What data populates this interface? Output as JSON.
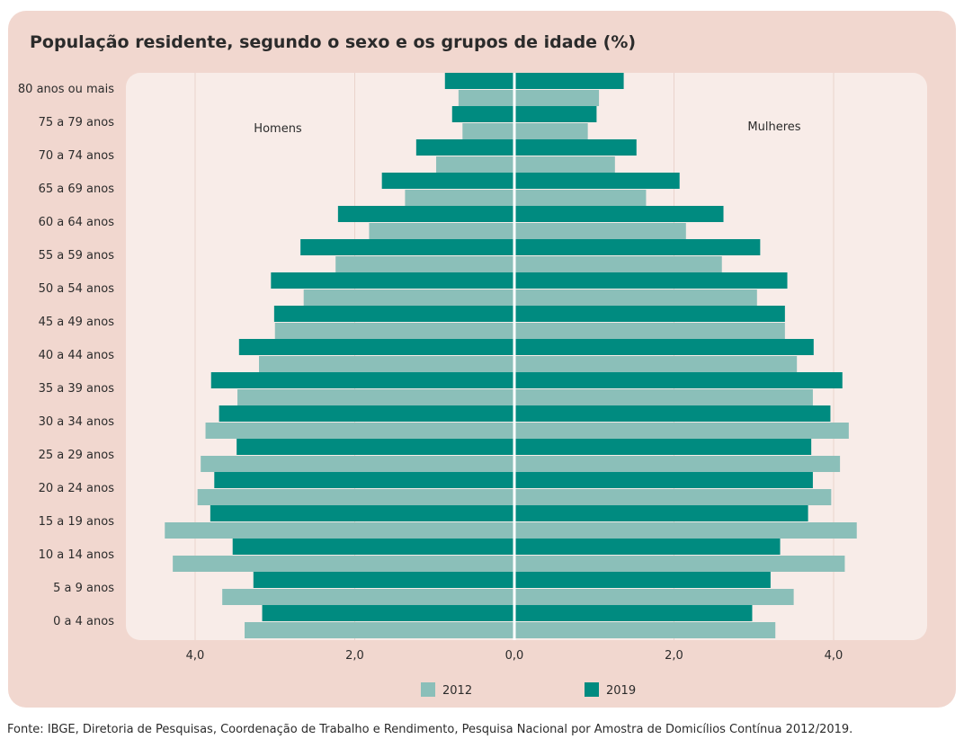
{
  "title": "População residente, segundo o sexo e os grupos de idade (%)",
  "source": "Fonte: IBGE, Diretoria de Pesquisas, Coordenação de Trabalho e Rendimento, Pesquisa Nacional por Amostra de Domicílios Contínua 2012/2019.",
  "colors": {
    "s2012": "#8bbfb9",
    "s2019": "#008b80",
    "card": "#f1d7cf",
    "plot": "#f8ece8"
  },
  "chart_data": {
    "type": "bar",
    "orientation": "horizontal-population-pyramid",
    "categories": [
      "80 anos ou mais",
      "75 a 79 anos",
      "70 a 74 anos",
      "65 a 69 anos",
      "60 a 64 anos",
      "55 a 59 anos",
      "50 a 54 anos",
      "45 a 49 anos",
      "40 a 44 anos",
      "35 a 39 anos",
      "30 a 34 anos",
      "25 a 29 anos",
      "20 a 24 anos",
      "15 a 19 anos",
      "10 a 14 anos",
      "5 a 9 anos",
      "0 a 4 anos"
    ],
    "groups": [
      "Homens",
      "Mulheres"
    ],
    "x_ticks": [
      "4,0",
      "2,0",
      "0,0",
      "2,0",
      "4,0"
    ],
    "xlim": [
      -4.5,
      4.5
    ],
    "grid": true,
    "legend_position": "bottom",
    "series": [
      {
        "name": "2012",
        "homens": [
          0.7,
          0.65,
          0.98,
          1.37,
          1.82,
          2.24,
          2.64,
          3.0,
          3.2,
          3.47,
          3.87,
          3.93,
          3.97,
          4.38,
          4.28,
          3.66,
          3.38
        ],
        "mulheres": [
          1.06,
          0.92,
          1.26,
          1.65,
          2.15,
          2.6,
          3.04,
          3.39,
          3.54,
          3.74,
          4.19,
          4.08,
          3.97,
          4.29,
          4.14,
          3.5,
          3.27
        ]
      },
      {
        "name": "2019",
        "homens": [
          0.87,
          0.78,
          1.23,
          1.66,
          2.21,
          2.68,
          3.05,
          3.01,
          3.45,
          3.8,
          3.7,
          3.48,
          3.76,
          3.81,
          3.53,
          3.27,
          3.16
        ],
        "mulheres": [
          1.37,
          1.03,
          1.53,
          2.07,
          2.62,
          3.08,
          3.42,
          3.39,
          3.75,
          4.11,
          3.96,
          3.72,
          3.74,
          3.68,
          3.33,
          3.21,
          2.98
        ]
      }
    ]
  }
}
